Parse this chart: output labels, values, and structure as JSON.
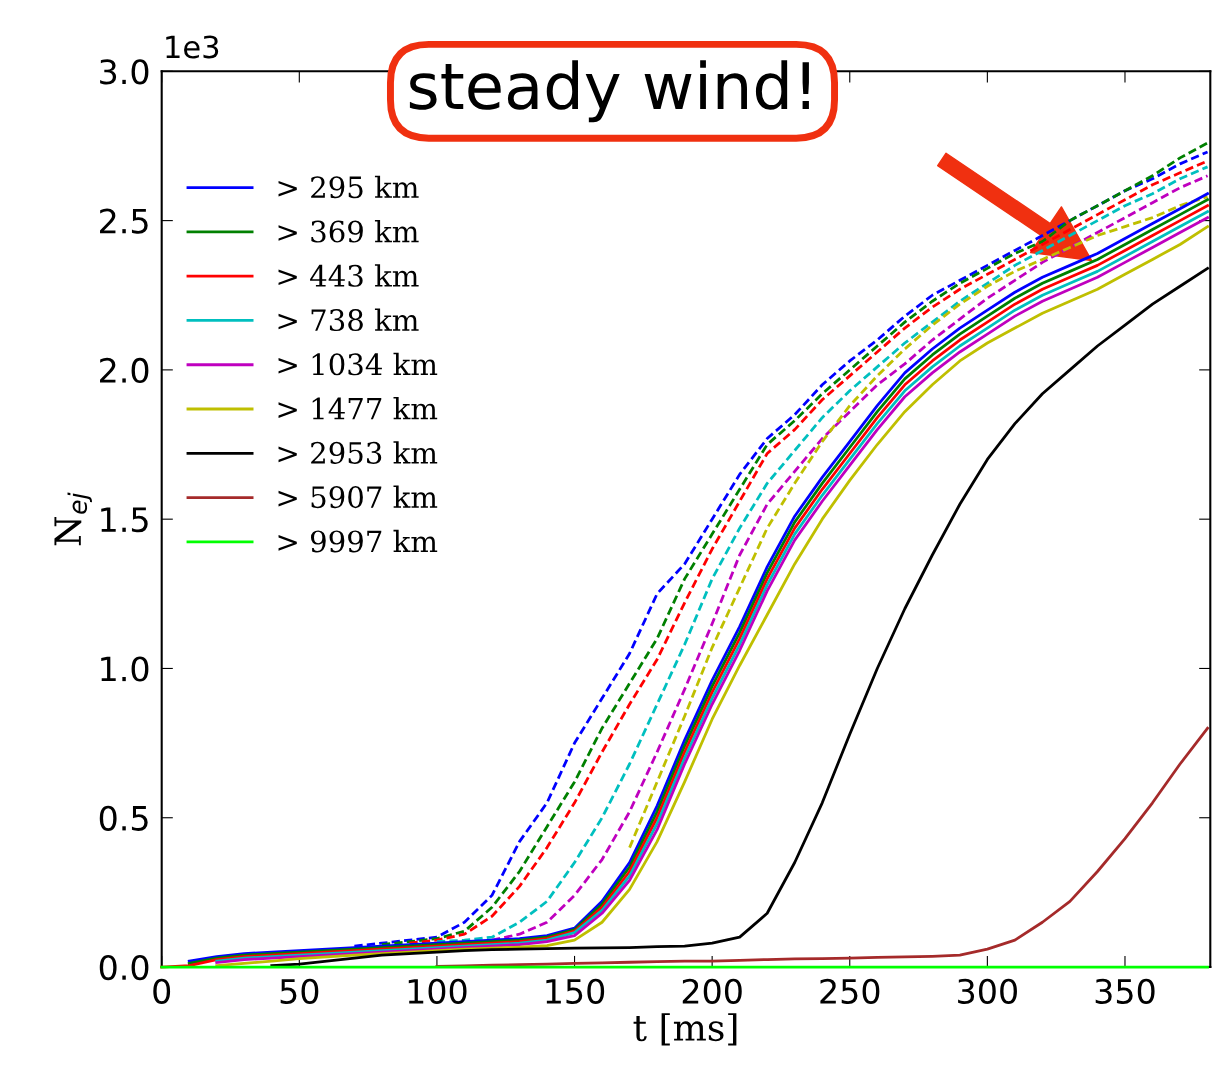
{
  "chart_data": {
    "type": "line",
    "xlabel": "t [ms]",
    "ylabel": "N$_{ej}$",
    "annotations": [
      "1e3",
      "steady wind!"
    ],
    "x": [
      0,
      10,
      20,
      30,
      40,
      50,
      60,
      70,
      80,
      90,
      100,
      110,
      120,
      130,
      140,
      150,
      160,
      170,
      180,
      190,
      200,
      210,
      220,
      230,
      240,
      250,
      260,
      270,
      280,
      290,
      300,
      310,
      320,
      330,
      340,
      350,
      360,
      370,
      380
    ],
    "xlim": [
      0,
      381
    ],
    "xticks": [
      0,
      50,
      100,
      150,
      200,
      250,
      300,
      350
    ],
    "ylim": [
      0,
      3.0
    ],
    "yticks": [
      {
        "value": 0,
        "label": "0.0"
      },
      {
        "value": 0.5,
        "label": "0.5"
      },
      {
        "value": 1.0,
        "label": "1.0"
      },
      {
        "value": 1.5,
        "label": "1.5"
      },
      {
        "value": 2.0,
        "label": "2.0"
      },
      {
        "value": 2.5,
        "label": "2.5"
      },
      {
        "value": 3.0,
        "label": "3.0"
      }
    ],
    "grid": false,
    "legend": "left",
    "marker": "none",
    "series": [
      {
        "color": "#0000ff",
        "line_style": "dashed",
        "values": [
          null,
          null,
          null,
          null,
          null,
          null,
          null,
          0.07,
          0.08,
          0.09,
          0.1,
          0.15,
          0.24,
          0.42,
          0.55,
          0.75,
          0.9,
          1.05,
          1.25,
          1.35,
          1.5,
          1.65,
          1.77,
          1.85,
          1.95,
          2.03,
          2.1,
          2.18,
          2.25,
          2.3,
          2.35,
          2.4,
          2.45,
          2.5,
          2.55,
          2.6,
          2.64,
          2.69,
          2.73
        ]
      },
      {
        "color": "#008000",
        "line_style": "dashed",
        "values": [
          null,
          null,
          null,
          null,
          null,
          null,
          null,
          null,
          0.075,
          0.085,
          0.095,
          0.12,
          0.2,
          0.32,
          0.47,
          0.62,
          0.8,
          0.95,
          1.1,
          1.3,
          1.45,
          1.6,
          1.75,
          1.83,
          1.92,
          2.0,
          2.08,
          2.16,
          2.23,
          2.29,
          2.34,
          2.39,
          2.43,
          2.5,
          2.55,
          2.6,
          2.65,
          2.71,
          2.76
        ]
      },
      {
        "color": "#ff0000",
        "line_style": "dashed",
        "values": [
          null,
          null,
          null,
          null,
          null,
          null,
          null,
          null,
          null,
          0.08,
          0.09,
          0.11,
          0.17,
          0.27,
          0.4,
          0.55,
          0.72,
          0.88,
          1.03,
          1.22,
          1.4,
          1.56,
          1.72,
          1.8,
          1.9,
          1.98,
          2.06,
          2.14,
          2.21,
          2.27,
          2.32,
          2.37,
          2.42,
          2.47,
          2.52,
          2.57,
          2.62,
          2.66,
          2.7
        ]
      },
      {
        "color": "#00bfbf",
        "line_style": "dashed",
        "values": [
          null,
          null,
          null,
          null,
          null,
          null,
          null,
          null,
          null,
          null,
          0.085,
          0.09,
          0.1,
          0.15,
          0.22,
          0.35,
          0.5,
          0.68,
          0.88,
          1.08,
          1.3,
          1.47,
          1.62,
          1.73,
          1.84,
          1.93,
          2.01,
          2.09,
          2.16,
          2.23,
          2.29,
          2.35,
          2.4,
          2.45,
          2.5,
          2.55,
          2.59,
          2.64,
          2.68
        ]
      },
      {
        "color": "#bf00bf",
        "line_style": "dashed",
        "values": [
          null,
          null,
          null,
          null,
          null,
          null,
          null,
          null,
          null,
          null,
          null,
          null,
          0.09,
          0.11,
          0.15,
          0.24,
          0.36,
          0.52,
          0.72,
          0.93,
          1.15,
          1.38,
          1.55,
          1.66,
          1.77,
          1.86,
          1.95,
          2.02,
          2.1,
          2.17,
          2.24,
          2.3,
          2.36,
          2.41,
          2.46,
          2.51,
          2.56,
          2.61,
          2.65
        ]
      },
      {
        "color": "#bfbf00",
        "line_style": "dashed",
        "values": [
          null,
          null,
          null,
          null,
          null,
          null,
          null,
          null,
          null,
          null,
          null,
          null,
          null,
          null,
          null,
          null,
          null,
          0.4,
          0.62,
          0.84,
          1.07,
          1.27,
          1.47,
          1.62,
          1.76,
          1.88,
          1.98,
          2.07,
          2.15,
          2.22,
          2.28,
          2.33,
          2.37,
          2.41,
          2.45,
          2.48,
          2.51,
          2.55,
          2.58
        ]
      },
      {
        "name": "> 295 km",
        "color": "#0000ff",
        "line_style": "solid",
        "values": [
          null,
          0.02,
          0.035,
          0.045,
          0.05,
          0.055,
          0.06,
          0.065,
          0.07,
          0.075,
          0.08,
          0.085,
          0.09,
          0.095,
          0.105,
          0.13,
          0.22,
          0.35,
          0.54,
          0.76,
          0.96,
          1.14,
          1.34,
          1.51,
          1.64,
          1.76,
          1.88,
          1.99,
          2.07,
          2.14,
          2.2,
          2.26,
          2.31,
          2.35,
          2.39,
          2.44,
          2.49,
          2.54,
          2.59
        ]
      },
      {
        "name": "> 369 km",
        "color": "#008000",
        "line_style": "solid",
        "values": [
          null,
          0.012,
          0.03,
          0.04,
          0.045,
          0.05,
          0.055,
          0.06,
          0.065,
          0.07,
          0.075,
          0.08,
          0.085,
          0.09,
          0.1,
          0.125,
          0.21,
          0.335,
          0.52,
          0.74,
          0.94,
          1.12,
          1.32,
          1.49,
          1.62,
          1.74,
          1.86,
          1.97,
          2.05,
          2.12,
          2.18,
          2.24,
          2.29,
          2.33,
          2.37,
          2.42,
          2.47,
          2.52,
          2.57
        ]
      },
      {
        "name": "> 443 km",
        "color": "#ff0000",
        "line_style": "solid",
        "values": [
          0,
          0.005,
          0.025,
          0.035,
          0.04,
          0.045,
          0.05,
          0.055,
          0.06,
          0.065,
          0.07,
          0.075,
          0.08,
          0.085,
          0.095,
          0.12,
          0.2,
          0.32,
          0.5,
          0.72,
          0.92,
          1.1,
          1.3,
          1.47,
          1.6,
          1.72,
          1.84,
          1.95,
          2.03,
          2.1,
          2.16,
          2.22,
          2.27,
          2.31,
          2.35,
          2.4,
          2.45,
          2.5,
          2.55
        ]
      },
      {
        "name": "> 738 km",
        "color": "#00bfbf",
        "line_style": "solid",
        "values": [
          null,
          null,
          0.02,
          0.03,
          0.035,
          0.04,
          0.045,
          0.05,
          0.055,
          0.06,
          0.065,
          0.07,
          0.075,
          0.08,
          0.09,
          0.115,
          0.19,
          0.305,
          0.48,
          0.7,
          0.9,
          1.08,
          1.28,
          1.45,
          1.58,
          1.7,
          1.82,
          1.93,
          2.01,
          2.08,
          2.14,
          2.2,
          2.25,
          2.29,
          2.33,
          2.38,
          2.43,
          2.48,
          2.53
        ]
      },
      {
        "name": "> 1034 km",
        "color": "#bf00bf",
        "line_style": "solid",
        "values": [
          null,
          null,
          0.015,
          0.025,
          0.03,
          0.035,
          0.04,
          0.045,
          0.05,
          0.055,
          0.06,
          0.065,
          0.07,
          0.075,
          0.085,
          0.105,
          0.18,
          0.29,
          0.46,
          0.68,
          0.88,
          1.06,
          1.26,
          1.43,
          1.56,
          1.68,
          1.8,
          1.91,
          1.99,
          2.06,
          2.12,
          2.18,
          2.23,
          2.27,
          2.31,
          2.36,
          2.41,
          2.46,
          2.51
        ]
      },
      {
        "name": "> 1477 km",
        "color": "#bfbf00",
        "line_style": "solid",
        "values": [
          null,
          null,
          0.005,
          0.012,
          0.02,
          0.028,
          0.034,
          0.04,
          0.045,
          0.05,
          0.055,
          0.06,
          0.063,
          0.067,
          0.072,
          0.09,
          0.15,
          0.26,
          0.42,
          0.62,
          0.83,
          1.01,
          1.18,
          1.35,
          1.5,
          1.63,
          1.75,
          1.86,
          1.95,
          2.03,
          2.09,
          2.14,
          2.19,
          2.23,
          2.27,
          2.32,
          2.37,
          2.42,
          2.48
        ]
      },
      {
        "name": "> 2953 km",
        "color": "#000000",
        "line_style": "solid",
        "values": [
          null,
          null,
          null,
          null,
          0.005,
          0.01,
          0.02,
          0.03,
          0.04,
          0.045,
          0.05,
          0.055,
          0.058,
          0.06,
          0.062,
          0.063,
          0.064,
          0.065,
          0.068,
          0.07,
          0.08,
          0.1,
          0.18,
          0.35,
          0.55,
          0.78,
          1.0,
          1.2,
          1.38,
          1.55,
          1.7,
          1.82,
          1.92,
          2.0,
          2.08,
          2.15,
          2.22,
          2.28,
          2.34
        ]
      },
      {
        "name": "> 5907 km",
        "color": "#a52a2a",
        "line_style": "solid",
        "values": [
          null,
          null,
          null,
          null,
          null,
          null,
          null,
          null,
          null,
          null,
          0.002,
          0.004,
          0.006,
          0.008,
          0.01,
          0.012,
          0.014,
          0.016,
          0.018,
          0.02,
          0.02,
          0.022,
          0.025,
          0.027,
          0.028,
          0.03,
          0.032,
          0.034,
          0.036,
          0.04,
          0.06,
          0.09,
          0.15,
          0.22,
          0.32,
          0.43,
          0.55,
          0.68,
          0.8
        ]
      },
      {
        "name": "> 9997 km",
        "color": "#00ff00",
        "line_style": "solid",
        "values": [
          0,
          0,
          0,
          0,
          0,
          0,
          0,
          0,
          0,
          0,
          0,
          0,
          0,
          0,
          0,
          0,
          0,
          0,
          0,
          0,
          0,
          0,
          0,
          0,
          0,
          0,
          0,
          0,
          0,
          0,
          0,
          0,
          0,
          0,
          0,
          0,
          0,
          0,
          0
        ]
      }
    ]
  }
}
